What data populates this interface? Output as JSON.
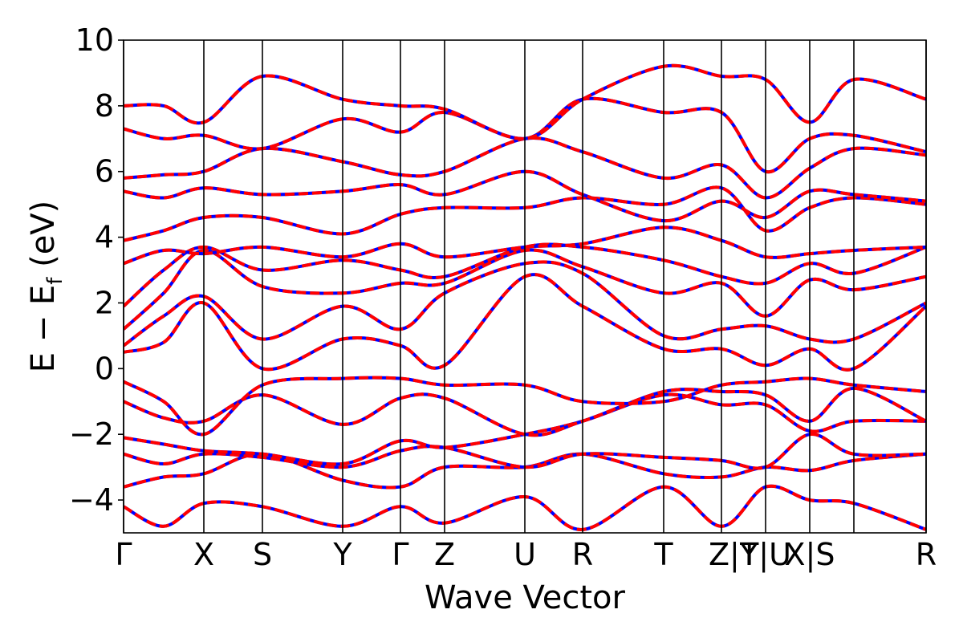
{
  "chart_data": {
    "type": "line",
    "xlabel": "Wave Vector",
    "ylabel": "E − E_f (eV)",
    "ylabel_main": "E − E",
    "ylabel_sub": "f",
    "ylabel_tail": " (eV)",
    "ylim": [
      -5,
      10
    ],
    "yticks": [
      -4,
      -2,
      0,
      2,
      4,
      6,
      8,
      10
    ],
    "ytick_labels": [
      "−4",
      "−2",
      "0",
      "2",
      "4",
      "6",
      "8",
      "10"
    ],
    "xlim": [
      0,
      10
    ],
    "kpoint_positions": [
      0,
      1.0,
      1.73,
      2.73,
      3.45,
      4.0,
      5.0,
      5.72,
      6.73,
      7.45,
      8.0,
      8.55,
      9.1,
      10.0
    ],
    "kpoint_labels": [
      {
        "label": "Γ",
        "x": 0
      },
      {
        "label": "X",
        "x": 1.0
      },
      {
        "label": "S",
        "x": 1.73
      },
      {
        "label": "Y",
        "x": 2.73
      },
      {
        "label": "Γ",
        "x": 3.45
      },
      {
        "label": "Z",
        "x": 4.0
      },
      {
        "label": "U",
        "x": 5.0
      },
      {
        "label": "R",
        "x": 5.72
      },
      {
        "label": "T",
        "x": 6.73
      },
      {
        "label": "Z|Y",
        "x": 7.6
      },
      {
        "label": "T|U",
        "x": 8.0
      },
      {
        "label": "X|S",
        "x": 8.55
      },
      {
        "label": "R",
        "x": 10.0
      }
    ],
    "grid": false,
    "colors": {
      "primary": "#0000ff",
      "overlay": "#ff0000"
    },
    "series": [
      {
        "x": [
          0,
          0.5,
          1.0,
          1.73,
          2.73,
          3.45,
          4.0,
          5.0,
          5.72,
          6.73,
          7.45,
          8.0,
          8.55,
          9.1,
          10.0
        ],
        "values": [
          -4.2,
          -4.8,
          -4.1,
          -4.2,
          -4.8,
          -4.2,
          -4.7,
          -3.9,
          -4.9,
          -3.6,
          -4.8,
          -3.6,
          -4.0,
          -4.1,
          -4.9
        ]
      },
      {
        "x": [
          0,
          0.5,
          1.0,
          1.73,
          2.73,
          3.45,
          4.0,
          5.0,
          5.72,
          6.73,
          7.45,
          8.0,
          8.55,
          9.1,
          10.0
        ],
        "values": [
          -3.6,
          -3.3,
          -3.2,
          -2.6,
          -3.4,
          -3.6,
          -3.0,
          -3.0,
          -2.6,
          -3.2,
          -3.3,
          -3.0,
          -3.1,
          -2.8,
          -2.6
        ]
      },
      {
        "x": [
          0,
          0.5,
          1.0,
          1.73,
          2.73,
          3.45,
          4.0,
          5.0,
          5.72,
          6.73,
          7.45,
          8.0,
          8.55,
          9.1,
          10.0
        ],
        "values": [
          -2.6,
          -2.9,
          -2.6,
          -2.7,
          -3.0,
          -2.5,
          -2.4,
          -3.0,
          -2.6,
          -2.7,
          -2.8,
          -3.0,
          -2.0,
          -2.6,
          -2.6
        ]
      },
      {
        "x": [
          0,
          0.5,
          1.0,
          1.73,
          2.73,
          3.45,
          4.0,
          5.0,
          5.72,
          6.73,
          7.45,
          8.0,
          8.55,
          9.1,
          10.0
        ],
        "values": [
          -2.1,
          -2.3,
          -2.5,
          -2.6,
          -2.9,
          -2.2,
          -2.4,
          -2.0,
          -1.6,
          -0.8,
          -1.1,
          -1.1,
          -1.9,
          -1.6,
          -1.6
        ]
      },
      {
        "x": [
          0,
          0.5,
          1.0,
          1.73,
          2.73,
          3.45,
          4.0,
          5.0,
          5.72,
          6.73,
          7.45,
          8.0,
          8.55,
          9.1,
          10.0
        ],
        "values": [
          -1.0,
          -1.5,
          -1.6,
          -0.8,
          -1.7,
          -0.9,
          -0.9,
          -2.0,
          -1.6,
          -0.7,
          -0.7,
          -0.8,
          -1.6,
          -0.6,
          -1.6
        ]
      },
      {
        "x": [
          0,
          0.5,
          1.0,
          1.73,
          2.73,
          3.45,
          4.0,
          5.0,
          5.72,
          6.73,
          7.45,
          8.0,
          8.55,
          9.1,
          10.0
        ],
        "values": [
          -0.4,
          -1.0,
          -2.0,
          -0.5,
          -0.3,
          -0.3,
          -0.5,
          -0.5,
          -1.0,
          -1.0,
          -0.5,
          -0.4,
          -0.3,
          -0.5,
          -0.7
        ]
      },
      {
        "x": [
          0,
          0.5,
          1.0,
          1.73,
          2.73,
          3.45,
          4.0,
          5.0,
          5.72,
          6.73,
          7.45,
          8.0,
          8.55,
          9.1,
          10.0
        ],
        "values": [
          0.5,
          0.8,
          2.0,
          0.0,
          0.9,
          0.7,
          0.1,
          2.8,
          1.9,
          0.6,
          0.6,
          0.1,
          0.6,
          0.0,
          1.9
        ]
      },
      {
        "x": [
          0,
          0.5,
          1.0,
          1.73,
          2.73,
          3.45,
          4.0,
          5.0,
          5.72,
          6.73,
          7.45,
          8.0,
          8.55,
          9.1,
          10.0
        ],
        "values": [
          0.7,
          1.6,
          2.2,
          0.9,
          1.9,
          1.2,
          2.3,
          3.2,
          2.9,
          1.0,
          1.2,
          1.3,
          0.9,
          0.9,
          2.0
        ]
      },
      {
        "x": [
          0,
          0.5,
          1.0,
          1.73,
          2.73,
          3.45,
          4.0,
          5.0,
          5.72,
          6.73,
          7.45,
          8.0,
          8.55,
          9.1,
          10.0
        ],
        "values": [
          1.2,
          2.3,
          3.6,
          2.5,
          2.3,
          2.6,
          2.6,
          3.6,
          3.1,
          2.3,
          2.6,
          1.6,
          2.7,
          2.4,
          2.8
        ]
      },
      {
        "x": [
          0,
          0.5,
          1.0,
          1.73,
          2.73,
          3.45,
          4.0,
          5.0,
          5.72,
          6.73,
          7.45,
          8.0,
          8.55,
          9.1,
          10.0
        ],
        "values": [
          1.9,
          3.0,
          3.7,
          3.0,
          3.3,
          3.0,
          2.8,
          3.7,
          3.7,
          3.3,
          2.8,
          2.6,
          3.2,
          2.9,
          3.7
        ]
      },
      {
        "x": [
          0,
          0.5,
          1.0,
          1.73,
          2.73,
          3.45,
          4.0,
          5.0,
          5.72,
          6.73,
          7.45,
          8.0,
          8.55,
          9.1,
          10.0
        ],
        "values": [
          3.2,
          3.6,
          3.5,
          3.7,
          3.4,
          3.8,
          3.4,
          3.7,
          3.8,
          4.3,
          3.9,
          3.4,
          3.5,
          3.6,
          3.7
        ]
      },
      {
        "x": [
          0,
          0.5,
          1.0,
          1.73,
          2.73,
          3.45,
          4.0,
          5.0,
          5.72,
          6.73,
          7.45,
          8.0,
          8.55,
          9.1,
          10.0
        ],
        "values": [
          3.9,
          4.2,
          4.6,
          4.6,
          4.1,
          4.7,
          4.9,
          4.9,
          5.2,
          5.0,
          5.5,
          4.2,
          4.9,
          5.2,
          5.0
        ]
      },
      {
        "x": [
          0,
          0.5,
          1.0,
          1.73,
          2.73,
          3.45,
          4.0,
          5.0,
          5.72,
          6.73,
          7.45,
          8.0,
          8.55,
          9.1,
          10.0
        ],
        "values": [
          5.4,
          5.2,
          5.5,
          5.3,
          5.4,
          5.6,
          5.3,
          6.0,
          5.3,
          4.5,
          5.1,
          4.6,
          5.4,
          5.3,
          5.1
        ]
      },
      {
        "x": [
          0,
          0.5,
          1.0,
          1.73,
          2.73,
          3.45,
          4.0,
          5.0,
          5.72,
          6.73,
          7.45,
          8.0,
          8.55,
          9.1,
          10.0
        ],
        "values": [
          5.8,
          5.9,
          6.0,
          6.7,
          6.3,
          5.9,
          6.0,
          7.0,
          6.6,
          5.8,
          6.2,
          5.2,
          6.1,
          6.7,
          6.5
        ]
      },
      {
        "x": [
          0,
          0.5,
          1.0,
          1.73,
          2.73,
          3.45,
          4.0,
          5.0,
          5.72,
          6.73,
          7.45,
          8.0,
          8.55,
          9.1,
          10.0
        ],
        "values": [
          7.3,
          7.0,
          7.1,
          6.7,
          7.6,
          7.2,
          7.8,
          7.0,
          8.2,
          7.8,
          7.8,
          6.0,
          7.0,
          7.1,
          6.6
        ]
      },
      {
        "x": [
          0,
          0.5,
          1.0,
          1.73,
          2.73,
          3.45,
          4.0,
          5.0,
          5.72,
          6.73,
          7.45,
          8.0,
          8.55,
          9.1,
          10.0
        ],
        "values": [
          8.0,
          8.0,
          7.5,
          8.9,
          8.2,
          8.0,
          7.9,
          7.0,
          8.2,
          9.2,
          8.9,
          8.8,
          7.5,
          8.8,
          8.2
        ]
      }
    ]
  }
}
